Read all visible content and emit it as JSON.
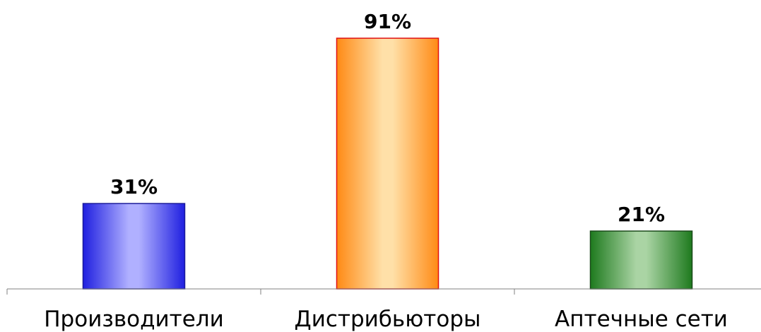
{
  "chart_data": {
    "type": "bar",
    "title": "",
    "xlabel": "",
    "ylabel": "",
    "categories": [
      "Производители",
      "Дистрибьюторы",
      "Аптечные сети"
    ],
    "values": [
      31,
      91,
      21
    ],
    "value_labels": [
      "31%",
      "91%",
      "21%"
    ],
    "unit": "%",
    "ylim": [
      0,
      100
    ],
    "grid": false,
    "legend": "none",
    "bars": [
      {
        "dark": "#1f1fe0",
        "light": "#b0b0ff",
        "stroke": "#1a1a9a"
      },
      {
        "dark": "#ff8a14",
        "light": "#ffe0a8",
        "stroke": "#e01010"
      },
      {
        "dark": "#1e7a1e",
        "light": "#aad4a4",
        "stroke": "#1a4a1a"
      }
    ]
  }
}
